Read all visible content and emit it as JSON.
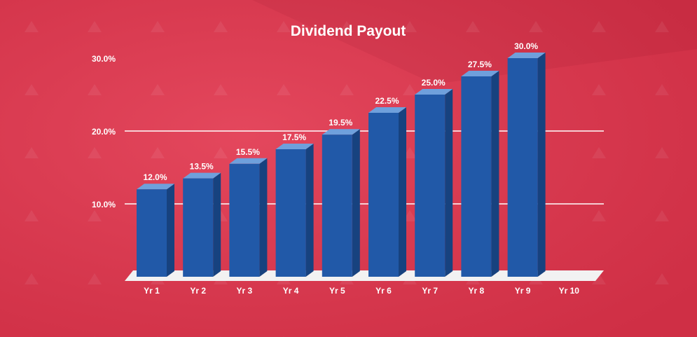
{
  "colors": {
    "background": "#e1334b",
    "background_dark": "#c82540",
    "bar_front": "#2159a8",
    "bar_top": "#6fa0dc",
    "bar_side": "#17427f",
    "floor": "#f2f2f2",
    "gridline": "#ffffff",
    "text": "#ffffff"
  },
  "chart_data": {
    "type": "bar",
    "title": "Dividend Payout",
    "xlabel": "",
    "ylabel": "",
    "categories": [
      "Yr 1",
      "Yr 2",
      "Yr 3",
      "Yr 4",
      "Yr 5",
      "Yr 6",
      "Yr 7",
      "Yr 8",
      "Yr 9",
      "Yr 10"
    ],
    "values": [
      12.0,
      13.5,
      15.5,
      17.5,
      19.5,
      22.5,
      25.0,
      27.5,
      30.0,
      null
    ],
    "value_labels": [
      "12.0%",
      "13.5%",
      "15.5%",
      "17.5%",
      "19.5%",
      "22.5%",
      "25.0%",
      "27.5%",
      "30.0%",
      ""
    ],
    "ylim": [
      0,
      30
    ],
    "yticks": [
      10,
      20,
      30
    ],
    "ytick_labels": [
      "10.0%",
      "20.0%",
      "30.0%"
    ],
    "grid": true,
    "legend": "none",
    "style": "3d-bars"
  }
}
